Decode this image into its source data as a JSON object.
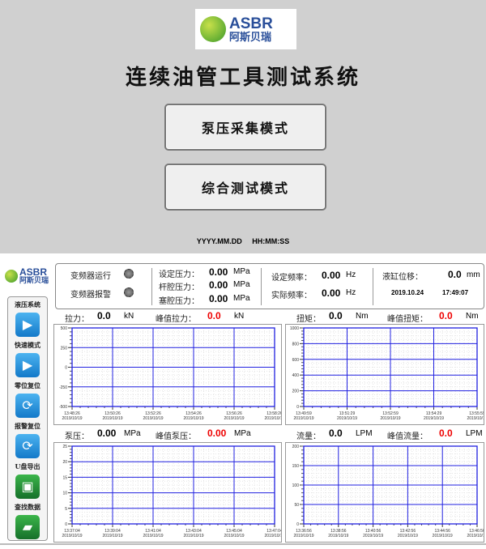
{
  "splash": {
    "logo": {
      "en": "ASBR",
      "cn": "阿斯贝瑞"
    },
    "title": "连续油管工具测试系统",
    "buttons": [
      "泵压采集模式",
      "综合测试模式"
    ],
    "date_placeholder": "YYYY.MM.DD",
    "time_placeholder": "HH:MM:SS"
  },
  "main": {
    "logo": {
      "en": "ASBR",
      "cn": "阿斯贝瑞"
    },
    "sidebar": [
      {
        "label": "液压系统",
        "icon": "play-icon",
        "color": "blue"
      },
      {
        "label": "快速模式",
        "icon": "play-icon",
        "color": "blue"
      },
      {
        "label": "零位复位",
        "icon": "refresh-icon",
        "color": "blue"
      },
      {
        "label": "报警复位",
        "icon": "refresh-icon",
        "color": "blue"
      },
      {
        "label": "U盘导出",
        "icon": "save-icon",
        "color": "green"
      },
      {
        "label": "查找数据",
        "icon": "folder-icon",
        "color": "green"
      }
    ],
    "status": {
      "inverter_run": "变频器运行",
      "inverter_alarm": "变频器报警",
      "set_pressure": {
        "label": "设定压力：",
        "value": "0.00",
        "unit": "MPa"
      },
      "rod_pressure": {
        "label": "杆腔压力：",
        "value": "0.00",
        "unit": "MPa"
      },
      "cap_pressure": {
        "label": "塞腔压力：",
        "value": "0.00",
        "unit": "MPa"
      },
      "set_freq": {
        "label": "设定频率：",
        "value": "0.00",
        "unit": "Hz"
      },
      "actual_freq": {
        "label": "实际频率：",
        "value": "0.00",
        "unit": "Hz"
      },
      "cyl_disp": {
        "label": "液缸位移：",
        "value": "0.0",
        "unit": "mm"
      },
      "date": "2019.10.24",
      "time": "17:49:07"
    },
    "readouts": [
      {
        "label": "拉力：",
        "value": "0.0",
        "unit": "kN",
        "peak_label": "峰值拉力：",
        "peak": "0.0",
        "peak_unit": "kN"
      },
      {
        "label": "扭矩：",
        "value": "0.0",
        "unit": "Nm",
        "peak_label": "峰值扭矩：",
        "peak": "0.0",
        "peak_unit": "Nm"
      },
      {
        "label": "泵压：",
        "value": "0.00",
        "unit": "MPa",
        "peak_label": "峰值泵压：",
        "peak": "0.00",
        "peak_unit": "MPa"
      },
      {
        "label": "流量：",
        "value": "0.0",
        "unit": "LPM",
        "peak_label": "峰值流量：",
        "peak": "0.0",
        "peak_unit": "LPM"
      }
    ]
  },
  "chart_data": [
    {
      "type": "line",
      "name": "tension",
      "yticks": [
        "500",
        "250",
        "0",
        "-250",
        "-500"
      ],
      "ylim": [
        -500,
        500
      ],
      "xticks": [
        "13:48:26",
        "13:50:26",
        "13:52:26",
        "13:54:26",
        "13:56:26",
        "13:58:26"
      ],
      "date": "2019/10/19",
      "series": [],
      "grid": true,
      "color": "#2020e0"
    },
    {
      "type": "line",
      "name": "torque",
      "yticks": [
        "1000",
        "800",
        "600",
        "400",
        "200",
        "0"
      ],
      "ylim": [
        0,
        1000
      ],
      "xticks": [
        "13:49:59",
        "13:51:29",
        "13:52:59",
        "13:54:29",
        "13:55:59"
      ],
      "date": "2019/10/19",
      "series": [],
      "grid": true,
      "color": "#2020e0"
    },
    {
      "type": "line",
      "name": "pump-pressure",
      "yticks": [
        "25",
        "20",
        "15",
        "10",
        "5",
        "0"
      ],
      "ylim": [
        0,
        25
      ],
      "xticks": [
        "13:37:04",
        "13:39:04",
        "13:41:04",
        "13:43:04",
        "13:45:04",
        "13:47:04"
      ],
      "date": "2019/10/19",
      "series": [],
      "grid": true,
      "color": "#2020e0"
    },
    {
      "type": "line",
      "name": "flow",
      "yticks": [
        "200",
        "150",
        "100",
        "50",
        "0"
      ],
      "ylim": [
        0,
        200
      ],
      "xticks": [
        "13:36:56",
        "13:38:56",
        "13:40:56",
        "13:42:56",
        "13:44:56",
        "13:46:56"
      ],
      "date": "2019/10/19",
      "series": [],
      "grid": true,
      "color": "#2020e0"
    }
  ]
}
